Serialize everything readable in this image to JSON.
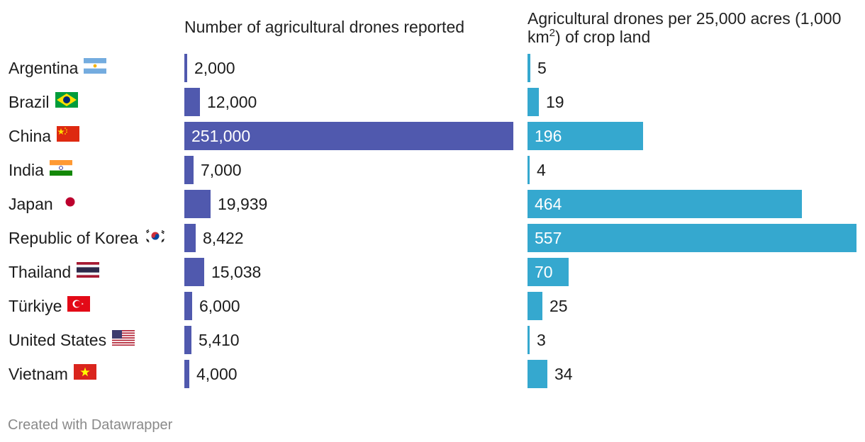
{
  "chart_data": {
    "type": "bar",
    "orientation": "horizontal",
    "categories": [
      "Argentina",
      "Brazil",
      "China",
      "India",
      "Japan",
      "Republic of Korea",
      "Thailand",
      "Türkiye",
      "United States",
      "Vietnam"
    ],
    "flag_icons": [
      "argentina-flag-icon",
      "brazil-flag-icon",
      "china-flag-icon",
      "india-flag-icon",
      "japan-flag-icon",
      "korea-flag-icon",
      "thailand-flag-icon",
      "turkiye-flag-icon",
      "united-states-flag-icon",
      "vietnam-flag-icon"
    ],
    "series": [
      {
        "name": "Number of agricultural drones reported",
        "title_text": "Number of agricultural drones reported",
        "color": "#5059ae",
        "values": [
          2000,
          12000,
          251000,
          7000,
          19939,
          8422,
          15038,
          6000,
          5410,
          4000
        ],
        "labels": [
          "2,000",
          "12,000",
          "251,000",
          "7,000",
          "19,939",
          "8,422",
          "15,038",
          "6,000",
          "5,410",
          "4,000"
        ],
        "xlim": [
          0,
          251000
        ]
      },
      {
        "name": "Agricultural drones per 25,000 acres (1,000 km2) of crop land",
        "title_text": "Agricultural drones per 25,000 acres (1,000 km",
        "title_sup": "2",
        "title_end": ") of crop land",
        "color": "#35a8cf",
        "values": [
          5,
          19,
          196,
          4,
          464,
          557,
          70,
          25,
          3,
          34
        ],
        "labels": [
          "5",
          "19",
          "196",
          "4",
          "464",
          "557",
          "70",
          "25",
          "3",
          "34"
        ],
        "xlim": [
          0,
          557
        ]
      }
    ],
    "credit": "Created with Datawrapper"
  }
}
